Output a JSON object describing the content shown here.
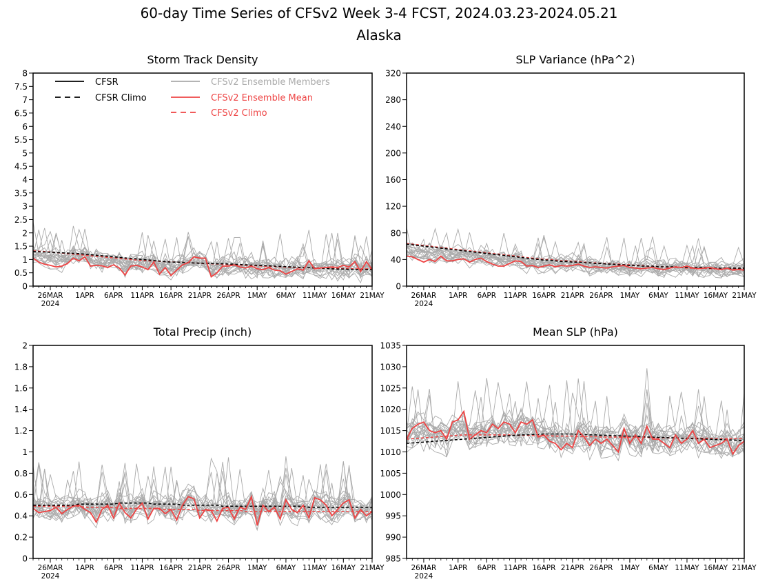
{
  "figure": {
    "title_line1": "60-day Time Series of CFSv2 Week 3-4 FCST, 2024.03.23-2024.05.21",
    "title_line2": "Alaska"
  },
  "legend": {
    "items": [
      {
        "label": "CFSR",
        "color": "#000000",
        "dashed": false
      },
      {
        "label": "CFSR Climo",
        "color": "#000000",
        "dashed": true
      },
      {
        "label": "CFSv2 Ensemble Members",
        "color": "#aaaaaa",
        "dashed": false
      },
      {
        "label": "CFSv2 Ensemble Mean",
        "color": "#ee4444",
        "dashed": false
      },
      {
        "label": "CFSv2 Climo",
        "color": "#ee4444",
        "dashed": true
      }
    ]
  },
  "chart_data": [
    {
      "type": "line",
      "title": "Storm Track Density",
      "x_tick_labels": [
        "26MAR",
        "1APR",
        "6APR",
        "11APR",
        "16APR",
        "21APR",
        "26APR",
        "1MAY",
        "6MAY",
        "11MAY",
        "16MAY",
        "21MAY"
      ],
      "x_tick_days": [
        3,
        9,
        14,
        19,
        24,
        29,
        34,
        39,
        44,
        49,
        54,
        59
      ],
      "x_sublabel": "2024",
      "ylim": [
        0,
        8
      ],
      "y_ticks": [
        "0",
        "0.5",
        "1",
        "1.5",
        "2",
        "2.5",
        "3",
        "3.5",
        "4",
        "4.5",
        "5",
        "5.5",
        "6",
        "6.5",
        "7",
        "7.5",
        "8"
      ],
      "series": [
        {
          "name": "CFSR Climo",
          "style": "cfsr_climo",
          "values": [
            1.3,
            1.29,
            1.28,
            1.27,
            1.26,
            1.25,
            1.24,
            1.23,
            1.22,
            1.2,
            1.18,
            1.16,
            1.14,
            1.12,
            1.1,
            1.08,
            1.06,
            1.04,
            1.02,
            1.0,
            0.98,
            0.96,
            0.94,
            0.92,
            0.9,
            0.9,
            0.89,
            0.88,
            0.87,
            0.86,
            0.86,
            0.85,
            0.84,
            0.84,
            0.83,
            0.82,
            0.81,
            0.8,
            0.79,
            0.78,
            0.77,
            0.76,
            0.75,
            0.74,
            0.73,
            0.72,
            0.71,
            0.7,
            0.69,
            0.68,
            0.67,
            0.66,
            0.65,
            0.64,
            0.64,
            0.63,
            0.63,
            0.62,
            0.62,
            0.62
          ]
        },
        {
          "name": "CFSv2 Climo",
          "style": "cfsv2_climo",
          "values": [
            1.32,
            1.31,
            1.3,
            1.28,
            1.26,
            1.24,
            1.22,
            1.2,
            1.18,
            1.16,
            1.14,
            1.12,
            1.1,
            1.08,
            1.06,
            1.04,
            1.02,
            1.0,
            0.98,
            0.96,
            0.95,
            0.94,
            0.93,
            0.92,
            0.91,
            0.9,
            0.89,
            0.88,
            0.87,
            0.86,
            0.85,
            0.84,
            0.83,
            0.82,
            0.81,
            0.8,
            0.79,
            0.78,
            0.77,
            0.76,
            0.75,
            0.74,
            0.73,
            0.72,
            0.71,
            0.7,
            0.7,
            0.69,
            0.69,
            0.68,
            0.68,
            0.67,
            0.67,
            0.66,
            0.66,
            0.66,
            0.65,
            0.65,
            0.65,
            0.65
          ]
        },
        {
          "name": "CFSv2 Ensemble Mean",
          "style": "cfsv2_mean",
          "values": [
            1.05,
            0.9,
            0.82,
            0.78,
            0.72,
            0.75,
            0.85,
            1.05,
            0.95,
            1.1,
            0.75,
            0.78,
            0.76,
            0.7,
            0.8,
            0.68,
            0.42,
            0.75,
            0.78,
            0.72,
            0.62,
            0.9,
            0.45,
            0.7,
            0.4,
            0.6,
            0.8,
            0.88,
            1.1,
            1.05,
            1.05,
            0.35,
            0.5,
            0.75,
            0.75,
            0.8,
            0.72,
            0.68,
            0.75,
            0.65,
            0.62,
            0.7,
            0.6,
            0.58,
            0.45,
            0.55,
            0.65,
            0.6,
            0.95,
            0.65,
            0.68,
            0.7,
            0.72,
            0.7,
            0.78,
            0.72,
            0.92,
            0.55,
            0.92,
            0.62
          ]
        }
      ]
    },
    {
      "type": "line",
      "title": "SLP Variance (hPa^2)",
      "x_tick_labels": [
        "26MAR",
        "1APR",
        "6APR",
        "11APR",
        "16APR",
        "21APR",
        "26APR",
        "1MAY",
        "6MAY",
        "11MAY",
        "16MAY",
        "21MAY"
      ],
      "x_tick_days": [
        3,
        9,
        14,
        19,
        24,
        29,
        34,
        39,
        44,
        49,
        54,
        59
      ],
      "x_sublabel": "2024",
      "ylim": [
        0,
        320
      ],
      "y_ticks": [
        "0",
        "40",
        "80",
        "120",
        "160",
        "200",
        "240",
        "280",
        "320"
      ],
      "series": [
        {
          "name": "CFSR Climo",
          "style": "cfsr_climo",
          "values": [
            63,
            62,
            61,
            60,
            59,
            58,
            57,
            56,
            55,
            54,
            53,
            52,
            51,
            50,
            49,
            48,
            47,
            46,
            45,
            44,
            43,
            42,
            41,
            40,
            39,
            39,
            38,
            37,
            37,
            36,
            36,
            35,
            35,
            34,
            34,
            33,
            33,
            32,
            32,
            31,
            31,
            30,
            30,
            30,
            29,
            29,
            29,
            29,
            28,
            28,
            28,
            28,
            28,
            27,
            27,
            27,
            27,
            27,
            27,
            27
          ]
        },
        {
          "name": "CFSv2 Climo",
          "style": "cfsv2_climo",
          "values": [
            64,
            63,
            62,
            61,
            60,
            59,
            58,
            57,
            56,
            55,
            54,
            53,
            52,
            51,
            50,
            49,
            48,
            47,
            46,
            45,
            44,
            43,
            42,
            41,
            40,
            40,
            39,
            38,
            38,
            37,
            37,
            36,
            35,
            35,
            34,
            34,
            33,
            33,
            32,
            32,
            31,
            31,
            30,
            30,
            29,
            29,
            28,
            28,
            28,
            27,
            27,
            27,
            27,
            26,
            26,
            26,
            26,
            26,
            26,
            26
          ]
        },
        {
          "name": "CFSv2 Ensemble Mean",
          "style": "cfsv2_mean",
          "values": [
            45,
            44,
            40,
            36,
            40,
            37,
            45,
            38,
            38,
            40,
            41,
            36,
            40,
            42,
            37,
            33,
            30,
            30,
            34,
            38,
            37,
            30,
            31,
            28,
            30,
            32,
            29,
            31,
            30,
            31,
            33,
            30,
            28,
            29,
            28,
            27,
            29,
            30,
            31,
            28,
            27,
            26,
            27,
            28,
            26,
            25,
            27,
            29,
            28,
            30,
            27,
            26,
            27,
            28,
            26,
            25,
            27,
            24,
            25,
            24
          ]
        }
      ]
    },
    {
      "type": "line",
      "title": "Total Precip (inch)",
      "x_tick_labels": [
        "26MAR",
        "1APR",
        "6APR",
        "11APR",
        "16APR",
        "21APR",
        "26APR",
        "1MAY",
        "6MAY",
        "11MAY",
        "16MAY",
        "21MAY"
      ],
      "x_tick_days": [
        3,
        9,
        14,
        19,
        24,
        29,
        34,
        39,
        44,
        49,
        54,
        59
      ],
      "x_sublabel": "2024",
      "ylim": [
        0,
        2
      ],
      "y_ticks": [
        "0",
        "0.2",
        "0.4",
        "0.6",
        "0.8",
        "1",
        "1.2",
        "1.4",
        "1.6",
        "1.8",
        "2"
      ],
      "series": [
        {
          "name": "CFSR Climo",
          "style": "cfsr_climo",
          "values": [
            0.5,
            0.5,
            0.5,
            0.5,
            0.5,
            0.5,
            0.5,
            0.5,
            0.51,
            0.51,
            0.51,
            0.51,
            0.51,
            0.51,
            0.51,
            0.52,
            0.52,
            0.52,
            0.52,
            0.52,
            0.52,
            0.51,
            0.51,
            0.51,
            0.51,
            0.51,
            0.5,
            0.5,
            0.5,
            0.5,
            0.5,
            0.5,
            0.5,
            0.49,
            0.49,
            0.49,
            0.49,
            0.49,
            0.49,
            0.49,
            0.49,
            0.49,
            0.49,
            0.49,
            0.49,
            0.49,
            0.49,
            0.49,
            0.48,
            0.48,
            0.48,
            0.48,
            0.48,
            0.48,
            0.48,
            0.48,
            0.48,
            0.48,
            0.48,
            0.48
          ]
        },
        {
          "name": "CFSv2 Climo",
          "style": "cfsv2_climo",
          "values": [
            0.49,
            0.49,
            0.49,
            0.49,
            0.49,
            0.49,
            0.49,
            0.49,
            0.49,
            0.48,
            0.48,
            0.48,
            0.48,
            0.48,
            0.48,
            0.47,
            0.47,
            0.47,
            0.47,
            0.47,
            0.47,
            0.47,
            0.46,
            0.46,
            0.46,
            0.46,
            0.46,
            0.46,
            0.46,
            0.45,
            0.45,
            0.45,
            0.45,
            0.45,
            0.45,
            0.45,
            0.45,
            0.44,
            0.44,
            0.44,
            0.44,
            0.44,
            0.44,
            0.44,
            0.44,
            0.44,
            0.44,
            0.44,
            0.44,
            0.44,
            0.44,
            0.44,
            0.44,
            0.44,
            0.44,
            0.44,
            0.44,
            0.44,
            0.44,
            0.44
          ]
        },
        {
          "name": "CFSv2 Ensemble Mean",
          "style": "cfsv2_mean",
          "values": [
            0.47,
            0.43,
            0.44,
            0.45,
            0.48,
            0.42,
            0.46,
            0.49,
            0.5,
            0.46,
            0.43,
            0.34,
            0.46,
            0.5,
            0.38,
            0.52,
            0.43,
            0.38,
            0.46,
            0.52,
            0.37,
            0.47,
            0.47,
            0.42,
            0.46,
            0.36,
            0.5,
            0.58,
            0.56,
            0.38,
            0.46,
            0.45,
            0.35,
            0.47,
            0.48,
            0.37,
            0.48,
            0.46,
            0.58,
            0.31,
            0.5,
            0.44,
            0.48,
            0.37,
            0.55,
            0.46,
            0.43,
            0.5,
            0.38,
            0.57,
            0.55,
            0.5,
            0.4,
            0.46,
            0.52,
            0.55,
            0.38,
            0.46,
            0.4,
            0.44
          ]
        }
      ]
    },
    {
      "type": "line",
      "title": "Mean SLP (hPa)",
      "x_tick_labels": [
        "26MAR",
        "1APR",
        "6APR",
        "11APR",
        "16APR",
        "21APR",
        "26APR",
        "1MAY",
        "6MAY",
        "11MAY",
        "16MAY",
        "21MAY"
      ],
      "x_tick_days": [
        3,
        9,
        14,
        19,
        24,
        29,
        34,
        39,
        44,
        49,
        54,
        59
      ],
      "x_sublabel": "2024",
      "ylim": [
        985,
        1035
      ],
      "y_ticks": [
        "985",
        "990",
        "995",
        "1000",
        "1005",
        "1010",
        "1015",
        "1020",
        "1025",
        "1030",
        "1035"
      ],
      "series": [
        {
          "name": "CFSR Climo",
          "style": "cfsr_climo",
          "values": [
            1012.0,
            1012.1,
            1012.2,
            1012.3,
            1012.4,
            1012.5,
            1012.6,
            1012.7,
            1012.8,
            1012.9,
            1013.0,
            1013.1,
            1013.2,
            1013.3,
            1013.4,
            1013.5,
            1013.6,
            1013.7,
            1013.8,
            1013.9,
            1014.0,
            1014.0,
            1014.1,
            1014.1,
            1014.2,
            1014.2,
            1014.2,
            1014.2,
            1014.2,
            1014.2,
            1014.1,
            1014.1,
            1014.0,
            1014.0,
            1013.9,
            1013.9,
            1013.8,
            1013.8,
            1013.7,
            1013.7,
            1013.6,
            1013.6,
            1013.5,
            1013.5,
            1013.4,
            1013.4,
            1013.3,
            1013.3,
            1013.2,
            1013.2,
            1013.1,
            1013.1,
            1013.0,
            1013.0,
            1012.9,
            1012.9,
            1012.8,
            1012.8,
            1012.7,
            1012.7
          ]
        },
        {
          "name": "CFSv2 Climo",
          "style": "cfsv2_climo",
          "values": [
            1013.0,
            1013.1,
            1013.2,
            1013.3,
            1013.4,
            1013.5,
            1013.6,
            1013.7,
            1013.8,
            1013.9,
            1014.0,
            1014.0,
            1014.0,
            1014.0,
            1014.0,
            1014.0,
            1014.0,
            1014.0,
            1014.0,
            1013.9,
            1013.9,
            1013.9,
            1013.9,
            1013.8,
            1013.8,
            1013.8,
            1013.7,
            1013.7,
            1013.7,
            1013.7,
            1013.6,
            1013.6,
            1013.6,
            1013.6,
            1013.5,
            1013.5,
            1013.5,
            1013.5,
            1013.4,
            1013.4,
            1013.4,
            1013.4,
            1013.4,
            1013.3,
            1013.3,
            1013.3,
            1013.3,
            1013.3,
            1013.2,
            1013.2,
            1013.2,
            1013.2,
            1013.2,
            1013.2,
            1013.1,
            1013.1,
            1013.1,
            1013.1,
            1013.1,
            1013.1
          ]
        },
        {
          "name": "CFSv2 Ensemble Mean",
          "style": "cfsv2_mean",
          "values": [
            1013.0,
            1015.5,
            1016.5,
            1017.0,
            1015.0,
            1014.5,
            1015.0,
            1013.0,
            1017.0,
            1017.5,
            1019.5,
            1013.0,
            1014.0,
            1015.0,
            1014.5,
            1016.5,
            1015.5,
            1017.0,
            1016.5,
            1014.5,
            1017.0,
            1016.5,
            1017.5,
            1013.5,
            1014.0,
            1012.5,
            1012.0,
            1010.5,
            1012.0,
            1011.0,
            1015.0,
            1013.5,
            1011.5,
            1013.0,
            1012.0,
            1013.0,
            1011.5,
            1010.0,
            1015.5,
            1012.0,
            1014.0,
            1012.0,
            1016.0,
            1013.0,
            1013.0,
            1012.0,
            1011.0,
            1014.0,
            1012.0,
            1013.0,
            1015.0,
            1012.0,
            1013.0,
            1011.0,
            1011.5,
            1012.0,
            1013.0,
            1009.5,
            1011.5,
            1012.5
          ]
        }
      ]
    }
  ],
  "styles": {
    "cfsr": {
      "color": "#000000",
      "dashed": false
    },
    "cfsr_climo": {
      "color": "#000000",
      "dashed": true
    },
    "cfsv2_members": {
      "color": "#aaaaaa",
      "dashed": false
    },
    "cfsv2_mean": {
      "color": "#ee4444",
      "dashed": false
    },
    "cfsv2_climo": {
      "color": "#ee4444",
      "dashed": true
    }
  }
}
